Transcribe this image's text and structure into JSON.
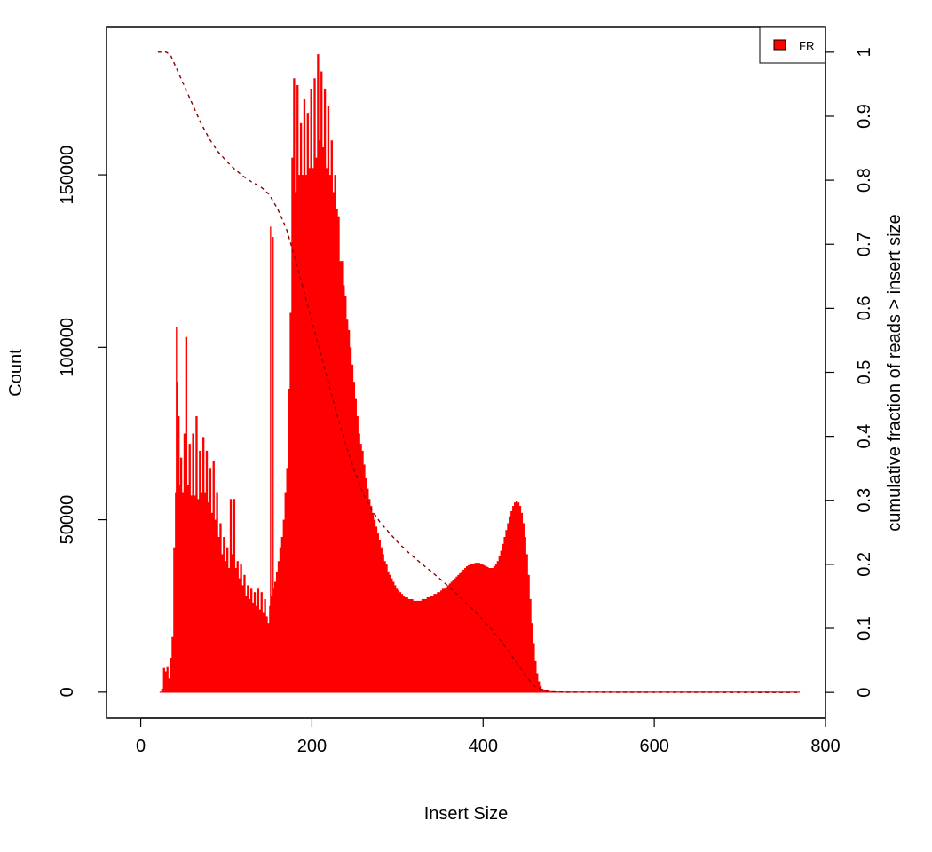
{
  "chart_data": {
    "type": "bar",
    "title": "",
    "xlabel": "Insert Size",
    "ylabel": "Count",
    "y2label": "cumulative fraction of reads > insert size",
    "xlim": [
      -40,
      800
    ],
    "ylim": [
      -7500,
      193000
    ],
    "y2lim": [
      -0.04,
      1.04
    ],
    "xticks": [
      0,
      200,
      400,
      600,
      800
    ],
    "yticks": [
      0,
      50000,
      100000,
      150000
    ],
    "y2ticks": [
      0,
      0.1,
      0.2,
      0.3,
      0.4,
      0.5,
      0.6,
      0.7,
      0.8,
      0.9,
      1
    ],
    "grid": false,
    "legend": {
      "position": "top-right",
      "entries": [
        {
          "name": "FR",
          "color": "#ff0000"
        }
      ]
    },
    "colors": {
      "bars": "#ff0000",
      "cumulative_line": "#8b0000"
    },
    "series": [
      {
        "name": "FR",
        "type": "histogram",
        "points": [
          [
            22,
            0
          ],
          [
            24,
            1000
          ],
          [
            26,
            7000
          ],
          [
            28,
            6000
          ],
          [
            30,
            7500
          ],
          [
            32,
            4000
          ],
          [
            34,
            10000
          ],
          [
            36,
            16000
          ],
          [
            38,
            42000
          ],
          [
            40,
            58000
          ],
          [
            41,
            106000
          ],
          [
            42,
            90000
          ],
          [
            43,
            62000
          ],
          [
            44,
            80000
          ],
          [
            45,
            60000
          ],
          [
            46,
            68000
          ],
          [
            48,
            58000
          ],
          [
            50,
            75000
          ],
          [
            52,
            103000
          ],
          [
            54,
            60000
          ],
          [
            56,
            72000
          ],
          [
            58,
            57000
          ],
          [
            60,
            75000
          ],
          [
            62,
            57000
          ],
          [
            64,
            80000
          ],
          [
            66,
            56000
          ],
          [
            68,
            70000
          ],
          [
            70,
            58000
          ],
          [
            72,
            74000
          ],
          [
            74,
            58000
          ],
          [
            76,
            70000
          ],
          [
            78,
            55000
          ],
          [
            80,
            65000
          ],
          [
            82,
            52000
          ],
          [
            84,
            67000
          ],
          [
            86,
            50000
          ],
          [
            88,
            58000
          ],
          [
            90,
            45000
          ],
          [
            92,
            49000
          ],
          [
            94,
            40000
          ],
          [
            96,
            45000
          ],
          [
            98,
            38000
          ],
          [
            100,
            42000
          ],
          [
            102,
            36000
          ],
          [
            104,
            56000
          ],
          [
            106,
            40000
          ],
          [
            108,
            56000
          ],
          [
            110,
            36000
          ],
          [
            112,
            38000
          ],
          [
            114,
            33000
          ],
          [
            116,
            37000
          ],
          [
            118,
            31000
          ],
          [
            120,
            34000
          ],
          [
            122,
            28000
          ],
          [
            124,
            31000
          ],
          [
            126,
            27000
          ],
          [
            128,
            30000
          ],
          [
            130,
            26000
          ],
          [
            132,
            29000
          ],
          [
            134,
            25000
          ],
          [
            136,
            30000
          ],
          [
            138,
            24000
          ],
          [
            140,
            29000
          ],
          [
            142,
            23000
          ],
          [
            144,
            27000
          ],
          [
            146,
            22000
          ],
          [
            148,
            20000
          ],
          [
            150,
            25000
          ],
          [
            151,
            135000
          ],
          [
            152,
            28000
          ],
          [
            154,
            132000
          ],
          [
            155,
            30000
          ],
          [
            156,
            32000
          ],
          [
            158,
            35000
          ],
          [
            160,
            38000
          ],
          [
            162,
            42000
          ],
          [
            164,
            45000
          ],
          [
            166,
            50000
          ],
          [
            168,
            58000
          ],
          [
            170,
            65000
          ],
          [
            172,
            88000
          ],
          [
            174,
            110000
          ],
          [
            176,
            155000
          ],
          [
            178,
            178000
          ],
          [
            180,
            145000
          ],
          [
            182,
            176000
          ],
          [
            184,
            150000
          ],
          [
            186,
            165000
          ],
          [
            188,
            150000
          ],
          [
            190,
            172000
          ],
          [
            192,
            150000
          ],
          [
            194,
            168000
          ],
          [
            196,
            152000
          ],
          [
            198,
            175000
          ],
          [
            200,
            152000
          ],
          [
            202,
            178000
          ],
          [
            204,
            155000
          ],
          [
            206,
            185000
          ],
          [
            208,
            160000
          ],
          [
            210,
            180000
          ],
          [
            212,
            158000
          ],
          [
            214,
            175000
          ],
          [
            216,
            152000
          ],
          [
            218,
            170000
          ],
          [
            220,
            150000
          ],
          [
            222,
            160000
          ],
          [
            224,
            145000
          ],
          [
            226,
            150000
          ],
          [
            228,
            140000
          ],
          [
            230,
            138000
          ],
          [
            232,
            125000
          ],
          [
            234,
            125000
          ],
          [
            236,
            118000
          ],
          [
            238,
            115000
          ],
          [
            240,
            108000
          ],
          [
            242,
            105000
          ],
          [
            244,
            100000
          ],
          [
            246,
            95000
          ],
          [
            248,
            90000
          ],
          [
            250,
            85000
          ],
          [
            252,
            80000
          ],
          [
            254,
            75000
          ],
          [
            256,
            72000
          ],
          [
            258,
            70000
          ],
          [
            260,
            66000
          ],
          [
            262,
            62000
          ],
          [
            264,
            59000
          ],
          [
            266,
            56000
          ],
          [
            268,
            54000
          ],
          [
            270,
            52000
          ],
          [
            272,
            50000
          ],
          [
            274,
            48000
          ],
          [
            276,
            46000
          ],
          [
            278,
            44000
          ],
          [
            280,
            42000
          ],
          [
            282,
            40000
          ],
          [
            284,
            38000
          ],
          [
            286,
            37000
          ],
          [
            288,
            35000
          ],
          [
            290,
            34000
          ],
          [
            292,
            33000
          ],
          [
            294,
            32000
          ],
          [
            296,
            31000
          ],
          [
            298,
            30000
          ],
          [
            300,
            29500
          ],
          [
            302,
            29000
          ],
          [
            304,
            28500
          ],
          [
            306,
            28000
          ],
          [
            308,
            27500
          ],
          [
            310,
            27500
          ],
          [
            312,
            27000
          ],
          [
            314,
            27000
          ],
          [
            316,
            27000
          ],
          [
            318,
            26500
          ],
          [
            320,
            26500
          ],
          [
            322,
            26500
          ],
          [
            324,
            26500
          ],
          [
            326,
            26500
          ],
          [
            328,
            27000
          ],
          [
            330,
            27000
          ],
          [
            332,
            27000
          ],
          [
            334,
            27500
          ],
          [
            336,
            27500
          ],
          [
            338,
            28000
          ],
          [
            340,
            28000
          ],
          [
            342,
            28500
          ],
          [
            344,
            28500
          ],
          [
            346,
            29000
          ],
          [
            348,
            29000
          ],
          [
            350,
            29500
          ],
          [
            352,
            30000
          ],
          [
            354,
            30000
          ],
          [
            356,
            30500
          ],
          [
            358,
            31000
          ],
          [
            360,
            31500
          ],
          [
            362,
            32000
          ],
          [
            364,
            32500
          ],
          [
            366,
            33000
          ],
          [
            368,
            33500
          ],
          [
            370,
            34000
          ],
          [
            372,
            34500
          ],
          [
            374,
            35000
          ],
          [
            376,
            35500
          ],
          [
            378,
            36000
          ],
          [
            380,
            36500
          ],
          [
            382,
            36800
          ],
          [
            384,
            37000
          ],
          [
            386,
            37200
          ],
          [
            388,
            37300
          ],
          [
            390,
            37500
          ],
          [
            392,
            37500
          ],
          [
            394,
            37500
          ],
          [
            396,
            37300
          ],
          [
            398,
            37000
          ],
          [
            400,
            36800
          ],
          [
            402,
            36500
          ],
          [
            404,
            36300
          ],
          [
            406,
            36000
          ],
          [
            408,
            36000
          ],
          [
            410,
            36000
          ],
          [
            412,
            36500
          ],
          [
            414,
            37000
          ],
          [
            416,
            38000
          ],
          [
            418,
            39500
          ],
          [
            420,
            41000
          ],
          [
            422,
            43000
          ],
          [
            424,
            45000
          ],
          [
            426,
            47000
          ],
          [
            428,
            49000
          ],
          [
            430,
            51000
          ],
          [
            432,
            52500
          ],
          [
            434,
            54000
          ],
          [
            436,
            55000
          ],
          [
            438,
            55500
          ],
          [
            440,
            55000
          ],
          [
            442,
            54000
          ],
          [
            444,
            52000
          ],
          [
            446,
            49000
          ],
          [
            448,
            45000
          ],
          [
            450,
            40000
          ],
          [
            452,
            34000
          ],
          [
            454,
            27000
          ],
          [
            456,
            20000
          ],
          [
            458,
            14000
          ],
          [
            460,
            9000
          ],
          [
            462,
            5500
          ],
          [
            464,
            3200
          ],
          [
            466,
            1800
          ],
          [
            468,
            1000
          ],
          [
            470,
            600
          ],
          [
            474,
            300
          ],
          [
            480,
            150
          ],
          [
            490,
            80
          ],
          [
            500,
            50
          ],
          [
            550,
            30
          ],
          [
            600,
            20
          ],
          [
            650,
            15
          ],
          [
            700,
            10
          ],
          [
            750,
            5
          ],
          [
            770,
            0
          ]
        ]
      },
      {
        "name": "cumulative fraction of reads > insert size",
        "type": "line",
        "axis": "right",
        "dash": "dashed",
        "points": [
          [
            20,
            1.0
          ],
          [
            30,
            1.0
          ],
          [
            35,
            0.995
          ],
          [
            40,
            0.98
          ],
          [
            50,
            0.95
          ],
          [
            60,
            0.92
          ],
          [
            70,
            0.89
          ],
          [
            80,
            0.865
          ],
          [
            90,
            0.845
          ],
          [
            100,
            0.83
          ],
          [
            110,
            0.817
          ],
          [
            120,
            0.806
          ],
          [
            130,
            0.797
          ],
          [
            140,
            0.79
          ],
          [
            150,
            0.778
          ],
          [
            160,
            0.755
          ],
          [
            170,
            0.725
          ],
          [
            180,
            0.68
          ],
          [
            190,
            0.63
          ],
          [
            200,
            0.58
          ],
          [
            210,
            0.53
          ],
          [
            220,
            0.48
          ],
          [
            230,
            0.43
          ],
          [
            240,
            0.385
          ],
          [
            250,
            0.345
          ],
          [
            260,
            0.31
          ],
          [
            270,
            0.285
          ],
          [
            280,
            0.265
          ],
          [
            290,
            0.25
          ],
          [
            300,
            0.235
          ],
          [
            310,
            0.222
          ],
          [
            320,
            0.21
          ],
          [
            330,
            0.199
          ],
          [
            340,
            0.188
          ],
          [
            350,
            0.177
          ],
          [
            360,
            0.165
          ],
          [
            370,
            0.153
          ],
          [
            380,
            0.14
          ],
          [
            390,
            0.127
          ],
          [
            400,
            0.113
          ],
          [
            410,
            0.098
          ],
          [
            420,
            0.082
          ],
          [
            430,
            0.064
          ],
          [
            440,
            0.045
          ],
          [
            450,
            0.026
          ],
          [
            460,
            0.01
          ],
          [
            470,
            0.003
          ],
          [
            480,
            0.001
          ],
          [
            500,
            0.0003
          ],
          [
            600,
            0.0001
          ],
          [
            770,
            0.0
          ]
        ]
      }
    ]
  }
}
